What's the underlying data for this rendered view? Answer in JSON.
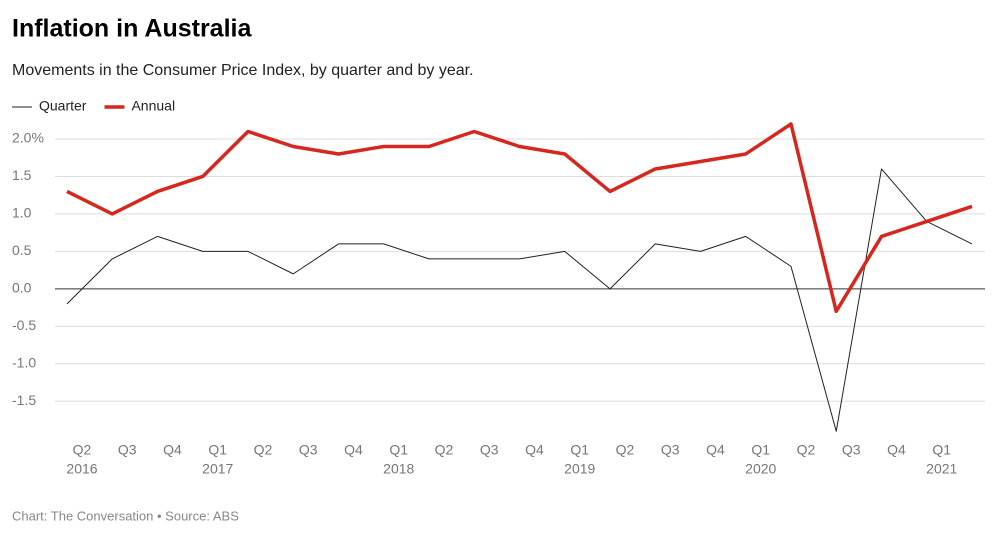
{
  "chart_data": {
    "type": "line",
    "title": "Inflation in Australia",
    "subtitle": "Movements in the Consumer Price Index, by quarter and by year.",
    "source": "Chart: The Conversation • Source: ABS",
    "categories": [
      "Q2",
      "Q3",
      "Q4",
      "Q1",
      "Q2",
      "Q3",
      "Q4",
      "Q1",
      "Q2",
      "Q3",
      "Q4",
      "Q1",
      "Q2",
      "Q3",
      "Q4",
      "Q1",
      "Q2",
      "Q3",
      "Q4",
      "Q1",
      null
    ],
    "years": [
      "2016",
      null,
      null,
      "2017",
      null,
      null,
      null,
      "2018",
      null,
      null,
      null,
      "2019",
      null,
      null,
      null,
      "2020",
      null,
      null,
      null,
      "2021",
      null
    ],
    "series": [
      {
        "name": "Quarter",
        "color": "#222222",
        "width": 1,
        "values": [
          -0.2,
          0.4,
          0.7,
          0.5,
          0.5,
          0.2,
          0.6,
          0.6,
          0.4,
          0.4,
          0.4,
          0.5,
          0.0,
          0.6,
          0.5,
          0.7,
          0.3,
          -1.9,
          1.6,
          0.9,
          0.6
        ]
      },
      {
        "name": "Annual",
        "color": "#d7261e",
        "width": 3.5,
        "values": [
          1.3,
          1.0,
          1.3,
          1.5,
          2.1,
          1.9,
          1.8,
          1.9,
          1.9,
          2.1,
          1.9,
          1.8,
          1.3,
          1.6,
          1.7,
          1.8,
          2.2,
          -0.3,
          0.7,
          0.9,
          1.1
        ]
      }
    ],
    "ylim": [
      -1.95,
      2.2
    ],
    "yticks": [
      {
        "value": 2,
        "label": "2.0%"
      },
      1.5,
      {
        "value": 1,
        "label": "1.0"
      },
      0.5,
      {
        "value": 0,
        "label": "0.0"
      },
      -0.5,
      {
        "value": -1,
        "label": "-1.0"
      },
      -1.5
    ],
    "grid": true,
    "legend": "top-left"
  }
}
